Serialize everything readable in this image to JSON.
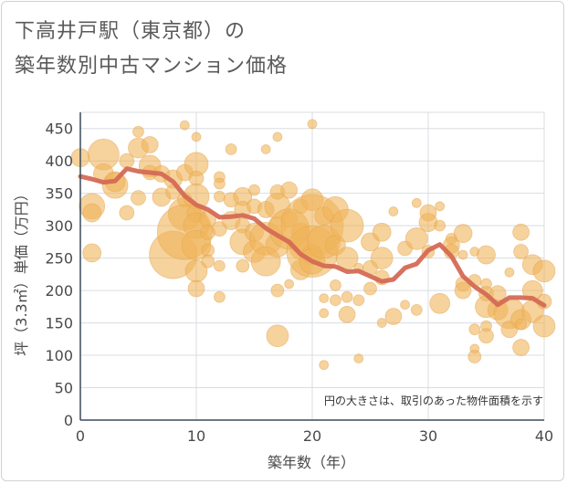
{
  "title_line1": "下高井戸駅（東京都）の",
  "title_line2": "築年数別中古マンション価格",
  "chart_data": {
    "type": "scatter",
    "title": "下高井戸駅（東京都）の築年数別中古マンション価格",
    "xlabel": "築年数（年）",
    "ylabel": "坪（3.3㎡）単価（万円）",
    "note": "円の大きさは、取引のあった物件面積を示す",
    "xlim": [
      0,
      40
    ],
    "ylim": [
      0,
      475
    ],
    "xticks": [
      0,
      10,
      20,
      30,
      40
    ],
    "yticks": [
      0,
      50,
      100,
      150,
      200,
      250,
      300,
      350,
      400,
      450
    ],
    "grid": true,
    "bubble_color": "#f0b45a",
    "line_color": "#d46a55",
    "series": [
      {
        "type": "line",
        "x": [
          0,
          1,
          2,
          3,
          4,
          5,
          6,
          7,
          8,
          9,
          10,
          11,
          12,
          13,
          14,
          15,
          16,
          17,
          18,
          19,
          20,
          21,
          22,
          23,
          24,
          25,
          26,
          27,
          28,
          29,
          30,
          31,
          32,
          33,
          34,
          35,
          36,
          37,
          38,
          39,
          40
        ],
        "values": [
          376,
          372,
          367,
          369,
          388,
          384,
          382,
          380,
          368,
          346,
          332,
          325,
          313,
          314,
          316,
          311,
          296,
          285,
          275,
          256,
          245,
          238,
          237,
          229,
          230,
          222,
          214,
          217,
          235,
          241,
          262,
          271,
          253,
          222,
          206,
          194,
          178,
          189,
          189,
          188,
          177
        ]
      },
      {
        "type": "bubble",
        "points": [
          [
            0,
            405,
            10
          ],
          [
            1,
            330,
            14
          ],
          [
            1,
            320,
            10
          ],
          [
            1,
            258,
            10
          ],
          [
            2,
            410,
            17
          ],
          [
            2,
            380,
            11
          ],
          [
            3,
            362,
            14
          ],
          [
            3,
            368,
            11
          ],
          [
            4,
            400,
            8
          ],
          [
            4,
            320,
            8
          ],
          [
            5,
            445,
            6
          ],
          [
            5,
            420,
            11
          ],
          [
            5,
            343,
            8
          ],
          [
            6,
            425,
            9
          ],
          [
            6,
            392,
            12
          ],
          [
            6,
            382,
            8
          ],
          [
            7,
            380,
            9
          ],
          [
            7,
            344,
            10
          ],
          [
            8,
            372,
            10
          ],
          [
            8,
            352,
            8
          ],
          [
            8,
            255,
            26
          ],
          [
            9,
            455,
            5
          ],
          [
            9,
            382,
            9
          ],
          [
            9,
            340,
            8
          ],
          [
            9,
            318,
            18
          ],
          [
            9,
            290,
            30
          ],
          [
            10,
            395,
            13
          ],
          [
            10,
            373,
            8
          ],
          [
            10,
            345,
            14
          ],
          [
            10,
            320,
            10
          ],
          [
            10,
            300,
            14
          ],
          [
            10,
            270,
            16
          ],
          [
            10,
            230,
            12
          ],
          [
            10,
            203,
            9
          ],
          [
            10,
            437,
            5
          ],
          [
            11,
            310,
            9
          ],
          [
            11,
            290,
            8
          ],
          [
            11,
            262,
            7
          ],
          [
            11,
            245,
            7
          ],
          [
            12,
            375,
            6
          ],
          [
            12,
            365,
            6
          ],
          [
            12,
            345,
            6
          ],
          [
            12,
            295,
            8
          ],
          [
            12,
            238,
            6
          ],
          [
            12,
            190,
            6
          ],
          [
            13,
            418,
            6
          ],
          [
            13,
            340,
            8
          ],
          [
            13,
            308,
            10
          ],
          [
            14,
            345,
            10
          ],
          [
            14,
            325,
            9
          ],
          [
            14,
            300,
            8
          ],
          [
            14,
            275,
            14
          ],
          [
            14,
            238,
            7
          ],
          [
            15,
            355,
            6
          ],
          [
            15,
            330,
            8
          ],
          [
            15,
            290,
            10
          ],
          [
            15,
            260,
            12
          ],
          [
            16,
            418,
            5
          ],
          [
            16,
            325,
            9
          ],
          [
            16,
            280,
            18
          ],
          [
            16,
            245,
            16
          ],
          [
            17,
            437,
            5
          ],
          [
            17,
            352,
            8
          ],
          [
            17,
            330,
            14
          ],
          [
            17,
            300,
            10
          ],
          [
            17,
            270,
            13
          ],
          [
            17,
            200,
            7
          ],
          [
            17,
            130,
            12
          ],
          [
            18,
            355,
            9
          ],
          [
            18,
            310,
            9
          ],
          [
            18,
            295,
            22
          ],
          [
            18,
            210,
            5
          ],
          [
            19,
            330,
            8
          ],
          [
            19,
            290,
            10
          ],
          [
            19,
            265,
            12
          ],
          [
            19,
            232,
            11
          ],
          [
            20,
            457,
            5
          ],
          [
            20,
            340,
            12
          ],
          [
            20,
            300,
            34
          ],
          [
            20,
            260,
            28
          ],
          [
            20,
            255,
            11
          ],
          [
            20,
            245,
            14
          ],
          [
            21,
            315,
            10
          ],
          [
            21,
            275,
            18
          ],
          [
            21,
            188,
            5
          ],
          [
            21,
            165,
            5
          ],
          [
            21,
            85,
            5
          ],
          [
            22,
            325,
            14
          ],
          [
            22,
            270,
            11
          ],
          [
            22,
            208,
            6
          ],
          [
            22,
            185,
            6
          ],
          [
            23,
            300,
            18
          ],
          [
            23,
            250,
            12
          ],
          [
            23,
            190,
            6
          ],
          [
            23,
            163,
            9
          ],
          [
            24,
            235,
            5
          ],
          [
            24,
            185,
            6
          ],
          [
            24,
            95,
            5
          ],
          [
            25,
            275,
            10
          ],
          [
            25,
            235,
            8
          ],
          [
            25,
            203,
            7
          ],
          [
            26,
            290,
            10
          ],
          [
            26,
            250,
            12
          ],
          [
            26,
            220,
            8
          ],
          [
            26,
            150,
            5
          ],
          [
            27,
            322,
            5
          ],
          [
            27,
            160,
            9
          ],
          [
            28,
            265,
            8
          ],
          [
            28,
            178,
            5
          ],
          [
            29,
            280,
            12
          ],
          [
            29,
            170,
            6
          ],
          [
            29,
            335,
            5
          ],
          [
            30,
            320,
            9
          ],
          [
            30,
            305,
            10
          ],
          [
            30,
            260,
            7
          ],
          [
            31,
            330,
            5
          ],
          [
            31,
            300,
            6
          ],
          [
            31,
            180,
            11
          ],
          [
            32,
            280,
            6
          ],
          [
            32,
            270,
            9
          ],
          [
            32,
            260,
            8
          ],
          [
            33,
            288,
            10
          ],
          [
            33,
            255,
            5
          ],
          [
            33,
            210,
            8
          ],
          [
            33,
            200,
            9
          ],
          [
            34,
            260,
            5
          ],
          [
            34,
            215,
            7
          ],
          [
            34,
            140,
            6
          ],
          [
            34,
            110,
            5
          ],
          [
            34,
            98,
            7
          ],
          [
            35,
            255,
            10
          ],
          [
            35,
            210,
            6
          ],
          [
            35,
            195,
            8
          ],
          [
            35,
            175,
            12
          ],
          [
            35,
            145,
            6
          ],
          [
            35,
            130,
            8
          ],
          [
            36,
            195,
            9
          ],
          [
            36,
            170,
            11
          ],
          [
            37,
            228,
            5
          ],
          [
            37,
            165,
            17
          ],
          [
            37,
            140,
            9
          ],
          [
            38,
            290,
            9
          ],
          [
            38,
            260,
            8
          ],
          [
            38,
            155,
            11
          ],
          [
            38,
            148,
            6
          ],
          [
            38,
            112,
            9
          ],
          [
            39,
            240,
            11
          ],
          [
            39,
            200,
            11
          ],
          [
            39,
            168,
            12
          ],
          [
            40,
            230,
            12
          ],
          [
            40,
            183,
            8
          ],
          [
            40,
            145,
            12
          ]
        ]
      }
    ]
  }
}
